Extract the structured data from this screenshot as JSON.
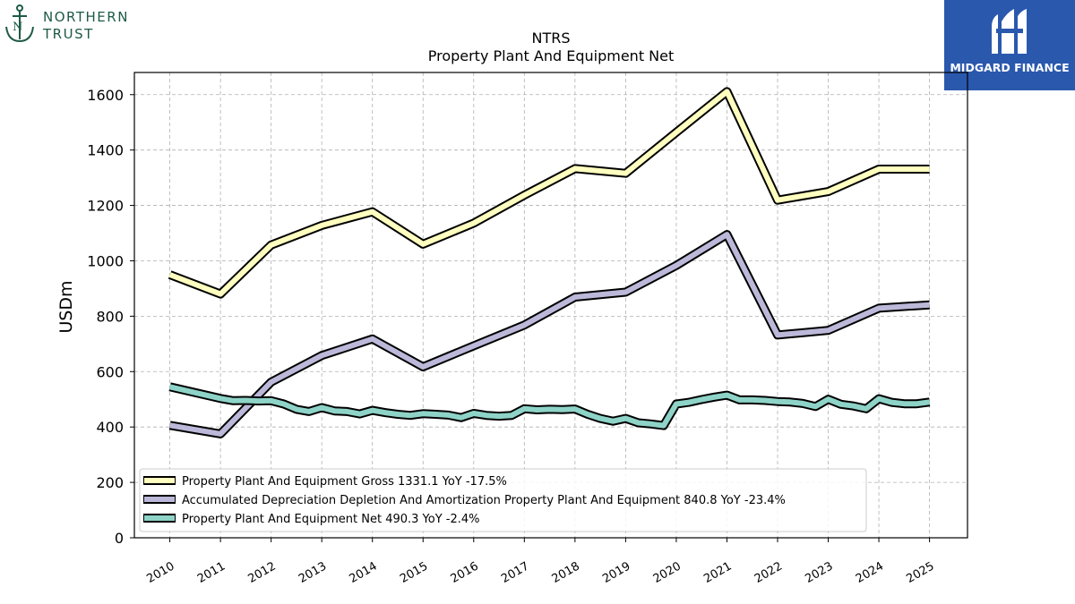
{
  "logos": {
    "left": {
      "line1": "NORTHERN",
      "line2": "TRUST",
      "icon": "anchor-icon"
    },
    "right": {
      "name": "MIDGARD FINANCE",
      "icon": "midgard-mark-icon"
    }
  },
  "chart_data": {
    "type": "line",
    "title": "NTRS",
    "subtitle": "Property Plant And Equipment Net",
    "xlabel": "",
    "ylabel": "USDm",
    "ylim": [
      0,
      1680
    ],
    "xlim": [
      2009.3,
      2025.75
    ],
    "yticks": [
      0,
      200,
      400,
      600,
      800,
      1000,
      1200,
      1400,
      1600
    ],
    "xticks": [
      "2010",
      "2011",
      "2012",
      "2013",
      "2014",
      "2015",
      "2016",
      "2017",
      "2018",
      "2019",
      "2020",
      "2021",
      "2022",
      "2023",
      "2024",
      "2025"
    ],
    "grid": true,
    "legend_position": "lower-left",
    "series": [
      {
        "name": "Property Plant And Equipment Gross",
        "legend": "Property Plant And Equipment Gross  1331.1 YoY -17.5%",
        "color": "#ffffbf",
        "x": [
          2010,
          2011,
          2012,
          2013,
          2014,
          2015,
          2016,
          2017,
          2018,
          2019,
          2020,
          2021,
          2022,
          2023,
          2024,
          2025
        ],
        "y": [
          950,
          880,
          1057,
          1128,
          1177,
          1060,
          1136,
          1237,
          1333,
          1316,
          1464,
          1611,
          1219,
          1250,
          1331,
          1331
        ]
      },
      {
        "name": "Accumulated Depreciation Depletion And Amortization Property Plant And Equipment",
        "legend": "Accumulated Depreciation Depletion And Amortization Property Plant And Equipment  840.8 YoY -23.4%",
        "color": "#bcb8d9",
        "x": [
          2010,
          2011,
          2012,
          2013,
          2014,
          2015,
          2016,
          2017,
          2018,
          2019,
          2020,
          2021,
          2022,
          2023,
          2024,
          2025
        ],
        "y": [
          406,
          375,
          562,
          658,
          718,
          617,
          693,
          768,
          869,
          887,
          983,
          1095,
          732,
          749,
          829,
          841
        ]
      },
      {
        "name": "Property Plant And Equipment Net",
        "legend": "Property Plant And Equipment Net  490.3 YoY -2.4%",
        "color": "#8ed3c7",
        "x": [
          2010,
          2011,
          2011.25,
          2011.5,
          2011.75,
          2012,
          2012.25,
          2012.5,
          2012.75,
          2013,
          2013.25,
          2013.5,
          2013.75,
          2014,
          2014.25,
          2014.5,
          2014.75,
          2015,
          2015.25,
          2015.5,
          2015.75,
          2016,
          2016.25,
          2016.5,
          2016.75,
          2017,
          2017.25,
          2017.5,
          2017.75,
          2018,
          2018.25,
          2018.5,
          2018.75,
          2019,
          2019.25,
          2019.5,
          2019.75,
          2020,
          2020.25,
          2020.5,
          2020.75,
          2021,
          2021.25,
          2021.5,
          2021.75,
          2022,
          2022.25,
          2022.5,
          2022.75,
          2023,
          2023.25,
          2023.5,
          2023.75,
          2024,
          2024.25,
          2024.5,
          2024.75,
          2025
        ],
        "y": [
          545,
          503,
          495,
          496,
          494,
          495,
          483,
          464,
          456,
          470,
          458,
          456,
          447,
          460,
          452,
          446,
          442,
          448,
          446,
          443,
          434,
          449,
          442,
          439,
          442,
          466,
          462,
          464,
          463,
          465,
          446,
          431,
          421,
          431,
          415,
          411,
          405,
          483,
          489,
          499,
          508,
          515,
          498,
          498,
          496,
          492,
          490,
          485,
          474,
          500,
          482,
          476,
          466,
          502,
          489,
          484,
          484,
          490
        ]
      }
    ]
  }
}
